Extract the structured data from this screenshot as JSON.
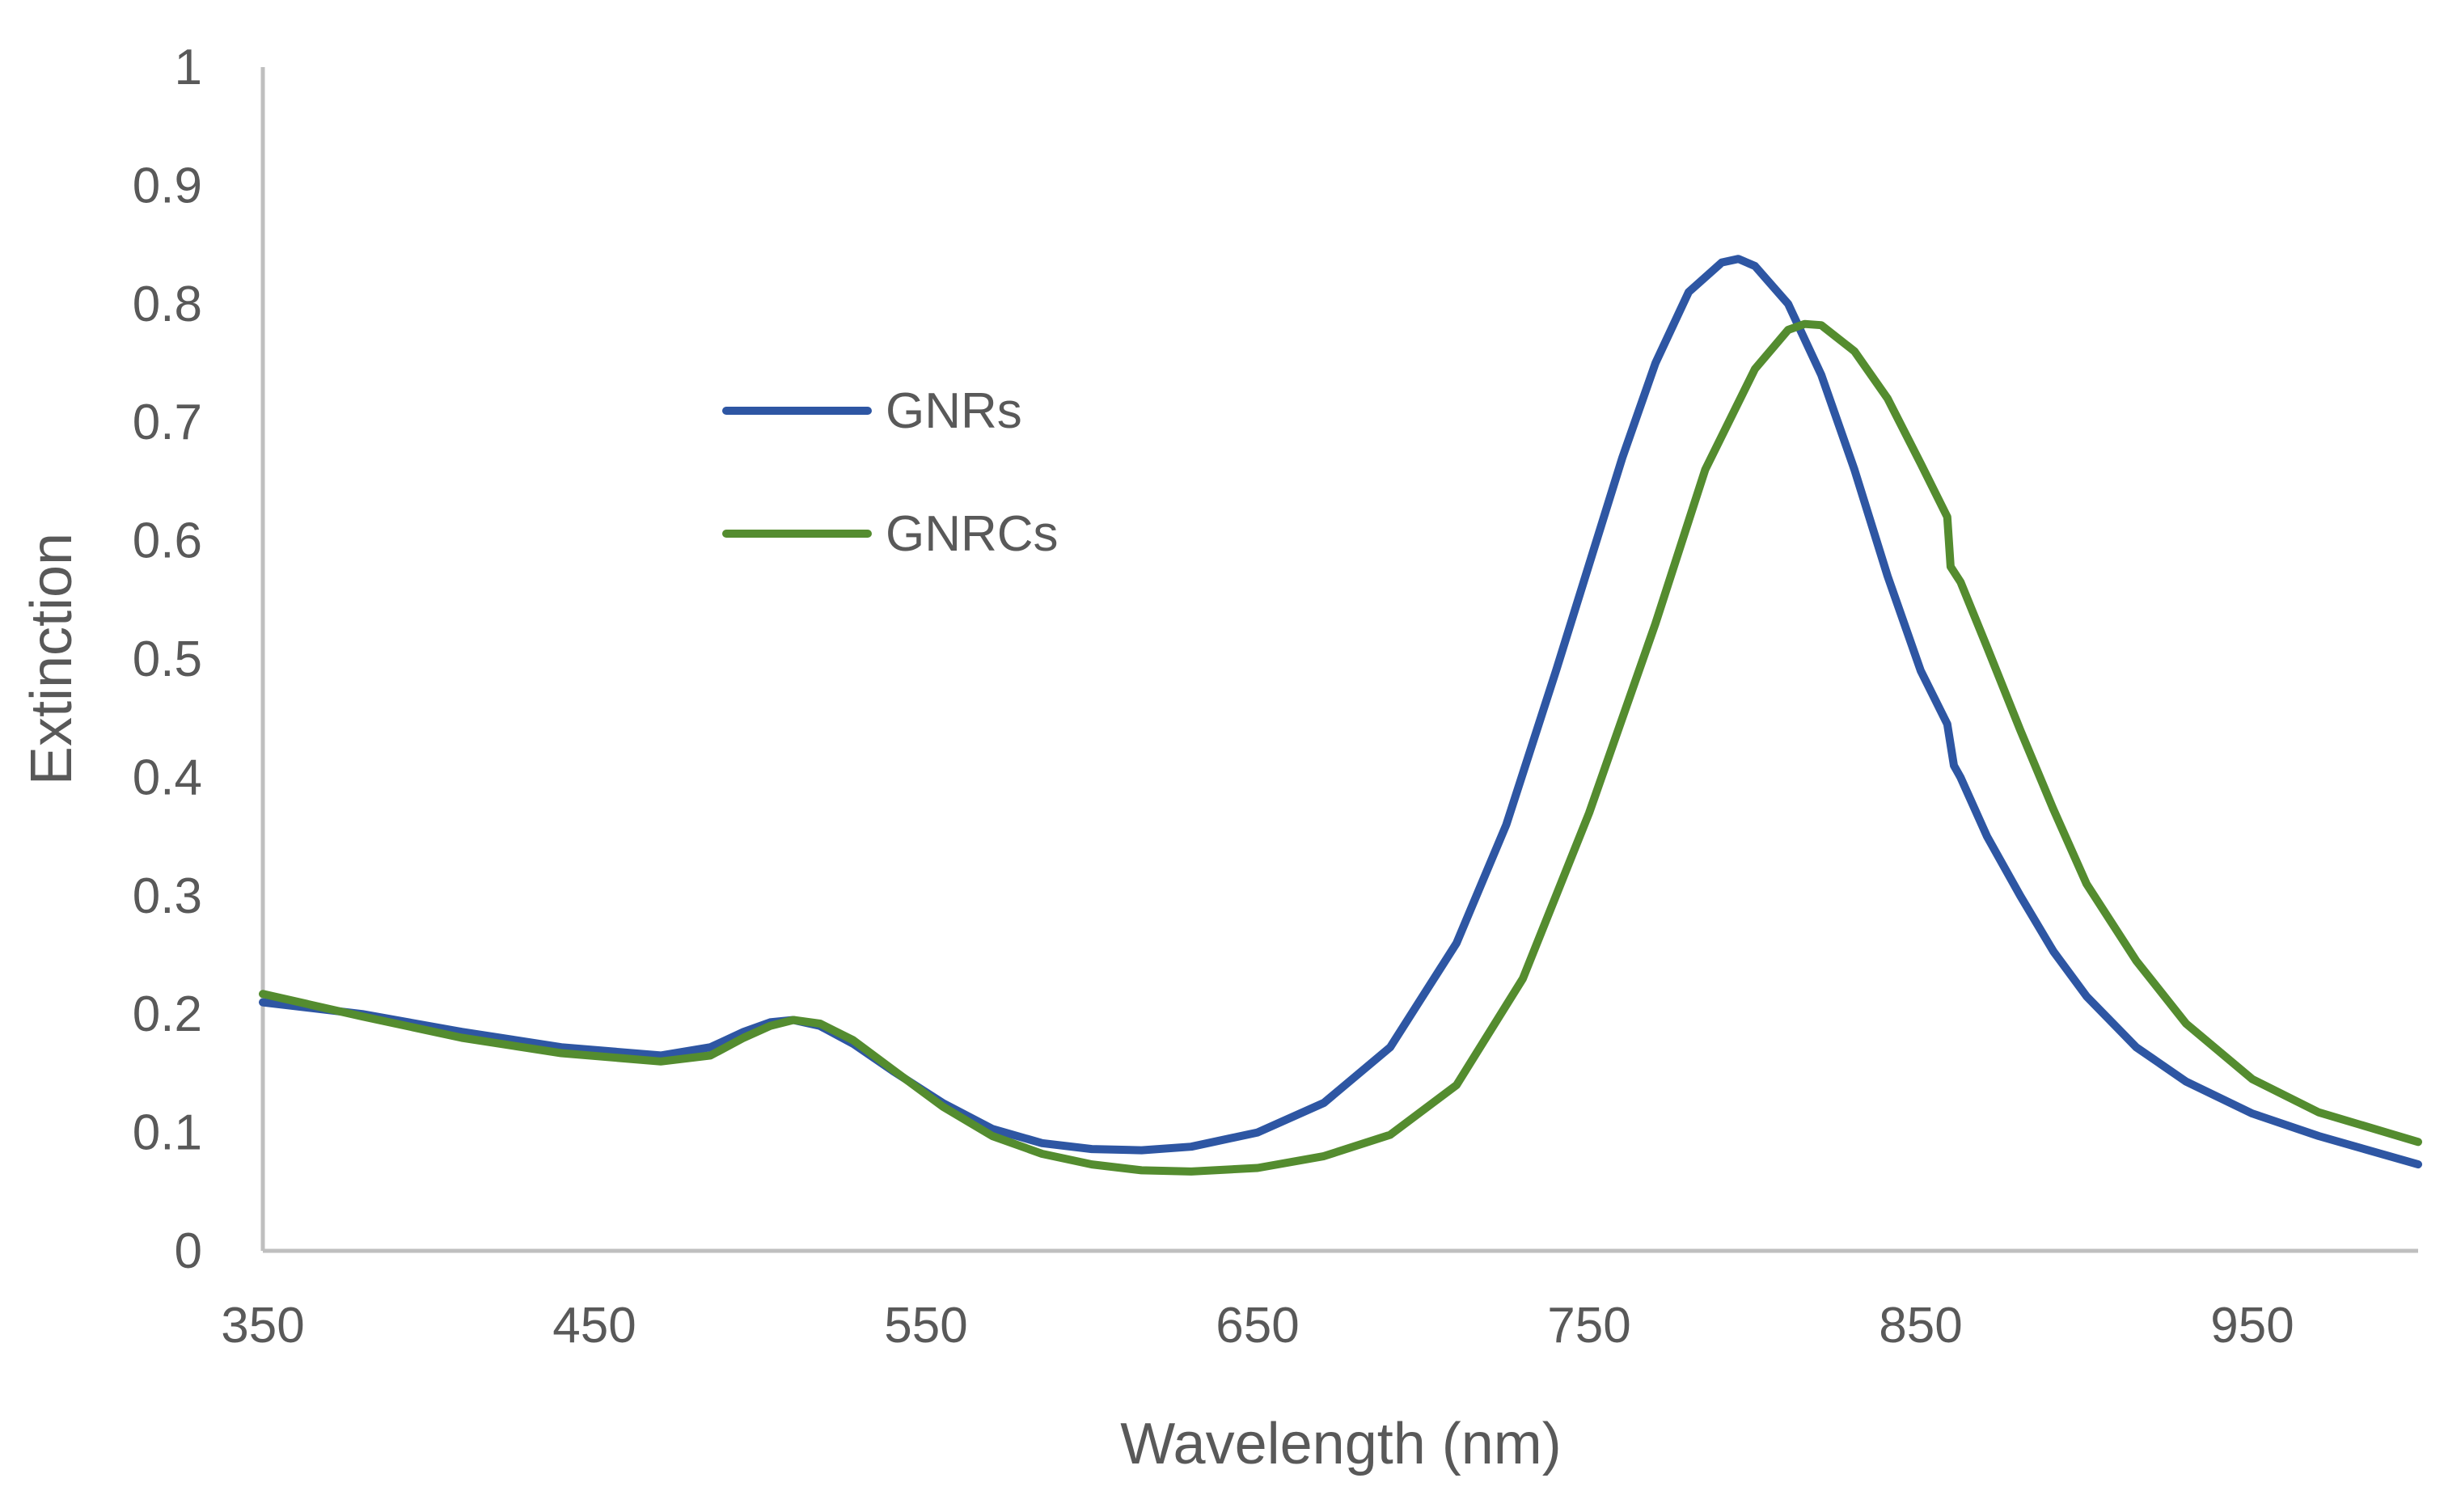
{
  "chart_data": {
    "type": "line",
    "title": "",
    "xlabel": "Wavelength (nm)",
    "ylabel": "Extinction",
    "xlim": [
      350,
      1000
    ],
    "ylim": [
      0,
      1
    ],
    "x_ticks": [
      "350",
      "450",
      "550",
      "650",
      "750",
      "850",
      "950"
    ],
    "x_tick_values": [
      350,
      450,
      550,
      650,
      750,
      850,
      950
    ],
    "y_ticks": [
      "0",
      "0.1",
      "0.2",
      "0.3",
      "0.4",
      "0.5",
      "0.6",
      "0.7",
      "0.8",
      "0.9",
      "1"
    ],
    "y_tick_values": [
      0,
      0.1,
      0.2,
      0.3,
      0.4,
      0.5,
      0.6,
      0.7,
      0.8,
      0.9,
      1
    ],
    "grid": false,
    "legend_position": "upper-left",
    "series": [
      {
        "name": "GNRs",
        "color": "#2e56a3",
        "x": [
          350,
          380,
          410,
          440,
          470,
          485,
          495,
          503,
          510,
          518,
          528,
          540,
          555,
          570,
          585,
          600,
          615,
          630,
          650,
          670,
          690,
          710,
          725,
          740,
          750,
          760,
          770,
          780,
          790,
          795,
          800,
          810,
          820,
          830,
          840,
          850,
          858,
          860,
          862,
          870,
          880,
          890,
          900,
          915,
          930,
          950,
          970,
          1000
        ],
        "values": [
          0.21,
          0.2,
          0.185,
          0.172,
          0.165,
          0.172,
          0.185,
          0.193,
          0.195,
          0.19,
          0.175,
          0.152,
          0.125,
          0.103,
          0.091,
          0.086,
          0.085,
          0.088,
          0.1,
          0.125,
          0.172,
          0.26,
          0.36,
          0.49,
          0.58,
          0.67,
          0.75,
          0.81,
          0.835,
          0.838,
          0.832,
          0.8,
          0.74,
          0.66,
          0.57,
          0.49,
          0.445,
          0.41,
          0.4,
          0.35,
          0.3,
          0.253,
          0.215,
          0.172,
          0.143,
          0.116,
          0.097,
          0.073
        ]
      },
      {
        "name": "GNRCs",
        "color": "#548c2f",
        "x": [
          350,
          380,
          410,
          440,
          470,
          485,
          495,
          503,
          510,
          518,
          528,
          540,
          555,
          570,
          585,
          600,
          615,
          630,
          650,
          670,
          690,
          710,
          730,
          750,
          770,
          785,
          800,
          810,
          815,
          820,
          830,
          840,
          850,
          858,
          859,
          862,
          870,
          880,
          890,
          900,
          915,
          930,
          950,
          970,
          1000
        ],
        "values": [
          0.217,
          0.198,
          0.18,
          0.167,
          0.16,
          0.165,
          0.18,
          0.19,
          0.195,
          0.192,
          0.178,
          0.153,
          0.122,
          0.097,
          0.082,
          0.073,
          0.068,
          0.067,
          0.07,
          0.08,
          0.098,
          0.14,
          0.23,
          0.37,
          0.53,
          0.66,
          0.745,
          0.778,
          0.783,
          0.782,
          0.76,
          0.72,
          0.665,
          0.62,
          0.578,
          0.565,
          0.51,
          0.44,
          0.373,
          0.31,
          0.245,
          0.192,
          0.145,
          0.117,
          0.092
        ]
      }
    ]
  }
}
